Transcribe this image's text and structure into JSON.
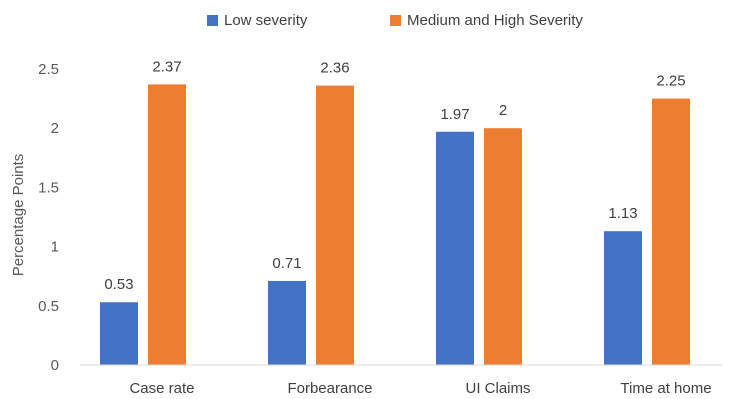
{
  "chart_data": {
    "type": "bar",
    "title": "",
    "xlabel": "",
    "ylabel": "Percentage Points",
    "ylim": [
      0,
      2.5
    ],
    "yticks": [
      0,
      0.5,
      1,
      1.5,
      2,
      2.5
    ],
    "ytick_labels": [
      "0",
      "0.5",
      "1",
      "1.5",
      "2",
      "2.5"
    ],
    "grid": false,
    "legend_position": "top",
    "categories": [
      "Case rate",
      "Forbearance",
      "UI Claims",
      "Time at home"
    ],
    "series": [
      {
        "name": "Low severity",
        "color": "#4472C4",
        "values": [
          0.53,
          0.71,
          1.97,
          1.13
        ],
        "labels": [
          "0.53",
          "0.71",
          "1.97",
          "1.13"
        ]
      },
      {
        "name": "Medium and High Severity",
        "color": "#ED7D31",
        "values": [
          2.37,
          2.36,
          2,
          2.25
        ],
        "labels": [
          "2.37",
          "2.36",
          "2",
          "2.25"
        ]
      }
    ]
  }
}
